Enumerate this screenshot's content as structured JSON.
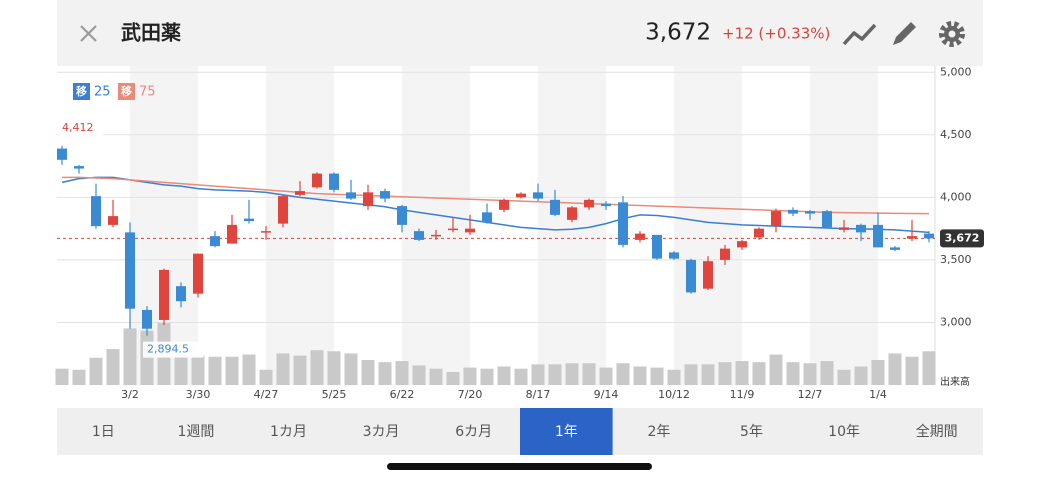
{
  "header": {
    "title": "武田薬",
    "price": "3,672",
    "change": "+12 (+0.33%)"
  },
  "chart_data": {
    "type": "candlestick",
    "categories": [
      null,
      null,
      null,
      null,
      "3/2",
      null,
      null,
      null,
      "3/30",
      null,
      null,
      null,
      "4/27",
      null,
      null,
      null,
      "5/25",
      null,
      null,
      null,
      "6/22",
      null,
      null,
      null,
      "7/20",
      null,
      null,
      null,
      "8/17",
      null,
      null,
      null,
      "9/14",
      null,
      null,
      null,
      "10/12",
      null,
      null,
      null,
      "11/9",
      null,
      null,
      null,
      "12/7",
      null,
      null,
      null,
      "1/4",
      null,
      null,
      null
    ],
    "open": [
      4390,
      4250,
      4010,
      3780,
      3720,
      3100,
      3020,
      3290,
      3230,
      3690,
      3630,
      3830,
      3720,
      3790,
      4020,
      4080,
      4190,
      4040,
      3930,
      4050,
      3930,
      3730,
      3690,
      3740,
      3720,
      3880,
      3900,
      4000,
      4040,
      3980,
      3820,
      3920,
      3950,
      3960,
      3660,
      3700,
      3560,
      3500,
      3270,
      3500,
      3600,
      3680,
      3770,
      3900,
      3890,
      3890,
      3740,
      3780,
      3780,
      3600,
      3670,
      3710
    ],
    "high": [
      4412,
      4260,
      4110,
      3980,
      3800,
      3130,
      3430,
      3320,
      3550,
      3730,
      3860,
      3980,
      3770,
      4020,
      4130,
      4200,
      4200,
      4140,
      4100,
      4070,
      3940,
      3750,
      3740,
      3840,
      3860,
      3950,
      3990,
      4040,
      4110,
      4060,
      3930,
      3990,
      3970,
      4010,
      3730,
      3700,
      3570,
      3510,
      3530,
      3620,
      3660,
      3760,
      3910,
      3920,
      3900,
      3900,
      3820,
      3790,
      3880,
      3610,
      3820,
      3730
    ],
    "low": [
      4260,
      4190,
      3750,
      3760,
      2950,
      2894.5,
      2980,
      3120,
      3200,
      3600,
      3630,
      3790,
      3660,
      3760,
      4010,
      4070,
      4040,
      3980,
      3900,
      3960,
      3720,
      3650,
      3660,
      3720,
      3700,
      3790,
      3880,
      3990,
      3970,
      3850,
      3800,
      3900,
      3900,
      3600,
      3640,
      3500,
      3500,
      3230,
      3260,
      3460,
      3580,
      3660,
      3720,
      3850,
      3820,
      3750,
      3720,
      3650,
      3600,
      3570,
      3650,
      3640
    ],
    "close": [
      4300,
      4230,
      3770,
      3850,
      3110,
      2950,
      3420,
      3170,
      3550,
      3610,
      3780,
      3810,
      3730,
      4010,
      4050,
      4190,
      4060,
      3990,
      4040,
      3990,
      3780,
      3660,
      3700,
      3750,
      3750,
      3800,
      3980,
      4030,
      3990,
      3860,
      3920,
      3980,
      3930,
      3620,
      3710,
      3510,
      3510,
      3240,
      3490,
      3590,
      3650,
      3750,
      3890,
      3870,
      3870,
      3760,
      3760,
      3720,
      3600,
      3580,
      3690,
      3672
    ],
    "up_color": "#e0443c",
    "down_color": "#3b8bd4",
    "series": [
      {
        "name": "25",
        "badge": "移",
        "color": "#3a7fd0",
        "values": [
          4120,
          4150,
          4160,
          4160,
          4140,
          4120,
          4100,
          4090,
          4070,
          4060,
          4055,
          4050,
          4040,
          4020,
          4000,
          3985,
          3970,
          3955,
          3940,
          3925,
          3900,
          3880,
          3860,
          3840,
          3820,
          3800,
          3780,
          3760,
          3750,
          3740,
          3745,
          3760,
          3790,
          3830,
          3860,
          3855,
          3840,
          3820,
          3800,
          3790,
          3780,
          3775,
          3770,
          3765,
          3760,
          3755,
          3750,
          3748,
          3745,
          3740,
          3730,
          3720
        ]
      },
      {
        "name": "75",
        "badge": "移",
        "color": "#ea8a78",
        "values": [
          4160,
          4160,
          4155,
          4150,
          4140,
          4130,
          4120,
          4110,
          4100,
          4090,
          4080,
          4070,
          4060,
          4050,
          4040,
          4030,
          4025,
          4020,
          4015,
          4010,
          4005,
          4000,
          3995,
          3990,
          3985,
          3980,
          3975,
          3970,
          3965,
          3960,
          3955,
          3950,
          3945,
          3940,
          3935,
          3930,
          3925,
          3920,
          3915,
          3910,
          3905,
          3900,
          3895,
          3890,
          3885,
          3880,
          3878,
          3876,
          3874,
          3872,
          3871,
          3870
        ]
      }
    ],
    "volume": [
      15,
      14,
      25,
      33,
      52,
      50,
      57,
      28,
      27,
      26,
      26,
      28,
      14,
      29,
      27,
      32,
      31,
      29,
      23,
      21,
      22,
      18,
      15,
      12,
      16,
      15,
      17,
      15,
      19,
      19,
      20,
      20,
      16,
      20,
      17,
      16,
      14,
      19,
      19,
      21,
      22,
      21,
      28,
      21,
      20,
      22,
      14,
      17,
      23,
      29,
      26,
      31
    ],
    "volume_label": "出来高",
    "volume_color": "#c9c9c9",
    "last": {
      "value": 3672,
      "label": "3,672"
    },
    "annotations": [
      {
        "at": 0,
        "value": 4412,
        "label": "4,412",
        "color": "#d9443a"
      },
      {
        "at": 5,
        "value": 2894.5,
        "label": "2,894.5",
        "color": "#3b8bd4"
      }
    ],
    "ylim": [
      2500,
      5050
    ],
    "yticks": [
      {
        "value": 3000,
        "label": "3,000"
      },
      {
        "value": 3500,
        "label": "3,500"
      },
      {
        "value": 4000,
        "label": "4,000"
      },
      {
        "value": 4500,
        "label": "4,500"
      },
      {
        "value": 5000,
        "label": "5,000"
      }
    ],
    "grid": true
  },
  "tabs": [
    "1日",
    "1週間",
    "1カ月",
    "3カ月",
    "6カ月",
    "1年",
    "2年",
    "5年",
    "10年",
    "全期間"
  ],
  "active_tab": 5
}
